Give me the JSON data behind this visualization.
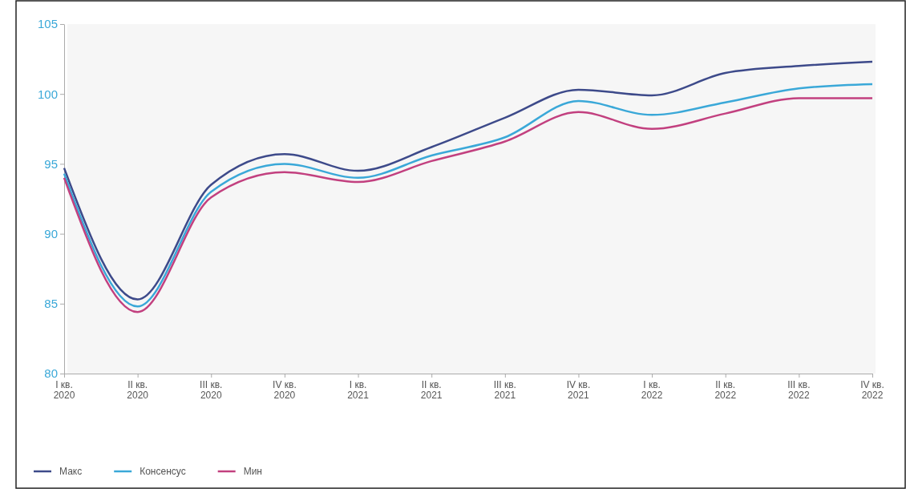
{
  "chart_data": {
    "type": "line",
    "categories": [
      "I кв.\n2020",
      "II кв.\n2020",
      "III кв.\n2020",
      "IV кв.\n2020",
      "I кв.\n2021",
      "II кв.\n2021",
      "III кв.\n2021",
      "IV кв.\n2021",
      "I кв.\n2022",
      "II кв.\n2022",
      "III кв.\n2022",
      "IV кв.\n2022"
    ],
    "series": [
      {
        "name": "Макс",
        "color": "#3d4a8a",
        "values": [
          94.7,
          85.3,
          93.5,
          95.7,
          94.5,
          96.2,
          98.3,
          100.3,
          99.9,
          101.5,
          102.0,
          102.3
        ]
      },
      {
        "name": "Консенсус",
        "color": "#3aa8d8",
        "values": [
          94.3,
          84.8,
          93.0,
          95.0,
          94.0,
          95.6,
          96.9,
          99.5,
          98.5,
          99.4,
          100.4,
          100.7
        ]
      },
      {
        "name": "Мин",
        "color": "#c2407f",
        "values": [
          94.0,
          84.4,
          92.6,
          94.4,
          93.7,
          95.2,
          96.6,
          98.7,
          97.5,
          98.6,
          99.7,
          99.7
        ]
      }
    ],
    "ylim": [
      80,
      105
    ],
    "yticks": [
      80,
      85,
      90,
      95,
      100,
      105
    ],
    "grid": false,
    "legend": "bottom left",
    "marker": "none",
    "line_style": "solid"
  }
}
